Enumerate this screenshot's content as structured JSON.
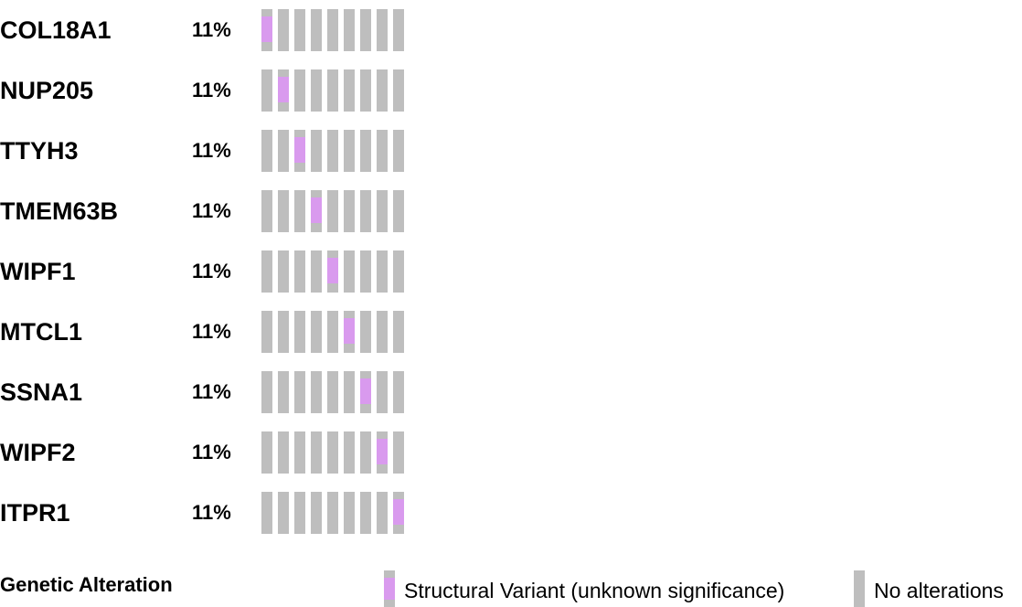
{
  "chart_data": {
    "type": "oncoprint",
    "samples": 9,
    "colors": {
      "no_alteration": "#bebebe",
      "structural_variant": "#d99aee"
    },
    "rows": [
      {
        "gene": "COL18A1",
        "percent": "11%",
        "altered_sample": 1
      },
      {
        "gene": "NUP205",
        "percent": "11%",
        "altered_sample": 2
      },
      {
        "gene": "TTYH3",
        "percent": "11%",
        "altered_sample": 3
      },
      {
        "gene": "TMEM63B",
        "percent": "11%",
        "altered_sample": 4
      },
      {
        "gene": "WIPF1",
        "percent": "11%",
        "altered_sample": 5
      },
      {
        "gene": "MTCL1",
        "percent": "11%",
        "altered_sample": 6
      },
      {
        "gene": "SSNA1",
        "percent": "11%",
        "altered_sample": 7
      },
      {
        "gene": "WIPF2",
        "percent": "11%",
        "altered_sample": 8
      },
      {
        "gene": "ITPR1",
        "percent": "11%",
        "altered_sample": 9
      }
    ],
    "legend": {
      "title": "Genetic Alteration",
      "items": [
        {
          "label": "Structural Variant (unknown significance)",
          "color": "#d99aee",
          "type": "structural_variant"
        },
        {
          "label": "No alterations",
          "color": "#bebebe",
          "type": "no_alteration"
        }
      ]
    }
  }
}
